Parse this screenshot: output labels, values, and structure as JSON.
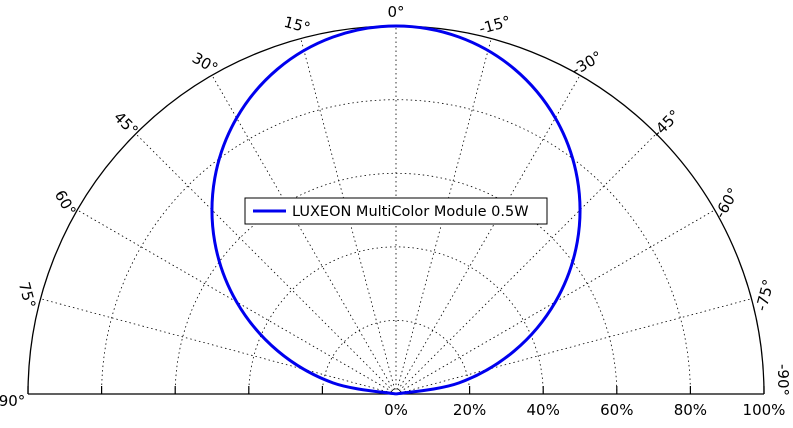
{
  "chart_data": {
    "type": "polar-half",
    "title": "",
    "angle_unit": "degrees",
    "angle_range": [
      -90,
      90
    ],
    "angle_ticks": [
      {
        "deg": -90,
        "label": "-90°"
      },
      {
        "deg": -75,
        "label": "-75°"
      },
      {
        "deg": -60,
        "label": "-60°"
      },
      {
        "deg": -45,
        "label": "-45°"
      },
      {
        "deg": -30,
        "label": "-30°"
      },
      {
        "deg": -15,
        "label": "-15°"
      },
      {
        "deg": 0,
        "label": "0°"
      },
      {
        "deg": 15,
        "label": "15°"
      },
      {
        "deg": 30,
        "label": "30°"
      },
      {
        "deg": 45,
        "label": "45°"
      },
      {
        "deg": 60,
        "label": "60°"
      },
      {
        "deg": 75,
        "label": "75°"
      },
      {
        "deg": 90,
        "label": "90°"
      }
    ],
    "radial_range": [
      0,
      100
    ],
    "radial_ticks": [
      {
        "value": 0,
        "label": "0%"
      },
      {
        "value": 20,
        "label": "20%"
      },
      {
        "value": 40,
        "label": "40%"
      },
      {
        "value": 60,
        "label": "60%"
      },
      {
        "value": 80,
        "label": "80%"
      },
      {
        "value": 100,
        "label": "100%"
      }
    ],
    "grid": true,
    "legend": {
      "position": "center",
      "entries": [
        "LUXEON MultiColor Module 0.5W"
      ]
    },
    "series": [
      {
        "name": "LUXEON MultiColor Module 0.5W",
        "color": "#0000ee",
        "angles": [
          -90,
          -80,
          -70,
          -60,
          -50,
          -40,
          -30,
          -20,
          -10,
          0,
          10,
          20,
          30,
          40,
          50,
          60,
          70,
          80,
          90
        ],
        "values": [
          0,
          17.4,
          34.2,
          50,
          64.3,
          76.6,
          86.6,
          94,
          98.5,
          100,
          98.5,
          94,
          86.6,
          76.6,
          64.3,
          50,
          34.2,
          17.4,
          0
        ]
      }
    ]
  }
}
